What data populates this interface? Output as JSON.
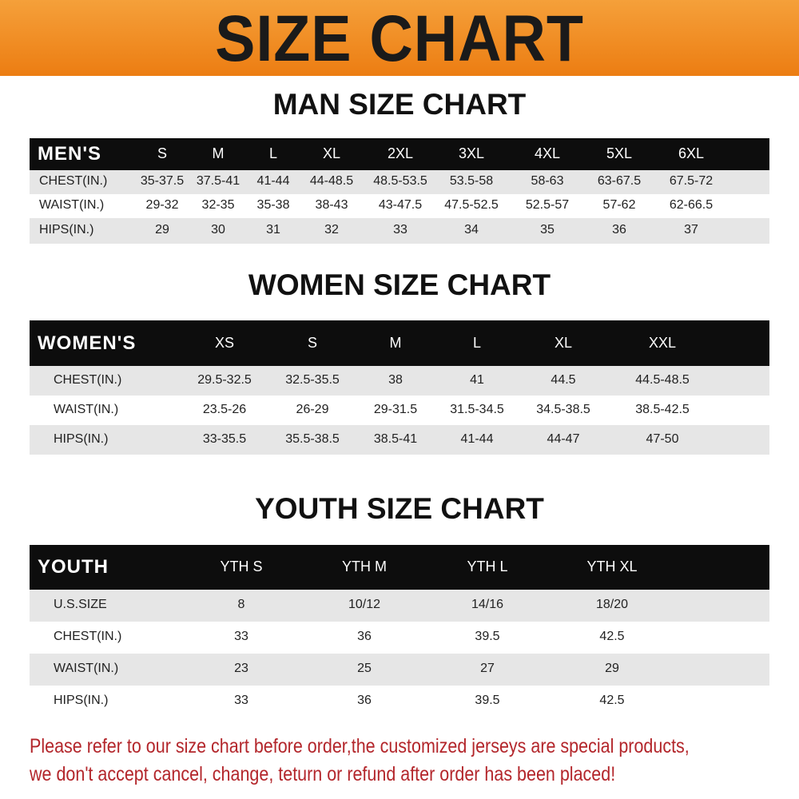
{
  "banner": {
    "title": "SIZE CHART",
    "color": "#ec7d12"
  },
  "men": {
    "title": "MAN SIZE CHART",
    "header": "MEN'S",
    "sizes": [
      "S",
      "M",
      "L",
      "XL",
      "2XL",
      "3XL",
      "4XL",
      "5XL",
      "6XL"
    ],
    "rows": [
      {
        "label": "CHEST(IN.)",
        "values": [
          "35-37.5",
          "37.5-41",
          "41-44",
          "44-48.5",
          "48.5-53.5",
          "53.5-58",
          "58-63",
          "63-67.5",
          "67.5-72"
        ]
      },
      {
        "label": "WAIST(IN.)",
        "values": [
          "29-32",
          "32-35",
          "35-38",
          "38-43",
          "43-47.5",
          "47.5-52.5",
          "52.5-57",
          "57-62",
          "62-66.5"
        ]
      },
      {
        "label": "HIPS(IN.)",
        "values": [
          "29",
          "30",
          "31",
          "32",
          "33",
          "34",
          "35",
          "36",
          "37"
        ]
      }
    ]
  },
  "women": {
    "title": "WOMEN SIZE CHART",
    "header": "WOMEN'S",
    "sizes": [
      "XS",
      "S",
      "M",
      "L",
      "XL",
      "XXL"
    ],
    "rows": [
      {
        "label": "CHEST(IN.)",
        "values": [
          "29.5-32.5",
          "32.5-35.5",
          "38",
          "41",
          "44.5",
          "44.5-48.5"
        ]
      },
      {
        "label": "WAIST(IN.)",
        "values": [
          "23.5-26",
          "26-29",
          "29-31.5",
          "31.5-34.5",
          "34.5-38.5",
          "38.5-42.5"
        ]
      },
      {
        "label": "HIPS(IN.)",
        "values": [
          "33-35.5",
          "35.5-38.5",
          "38.5-41",
          "41-44",
          "44-47",
          "47-50"
        ]
      }
    ]
  },
  "youth": {
    "title": "YOUTH SIZE CHART",
    "header": "YOUTH",
    "sizes": [
      "YTH S",
      "YTH M",
      "YTH L",
      "YTH XL"
    ],
    "rows": [
      {
        "label": "U.S.SIZE",
        "values": [
          "8",
          "10/12",
          "14/16",
          "18/20"
        ]
      },
      {
        "label": "CHEST(IN.)",
        "values": [
          "33",
          "36",
          "39.5",
          "42.5"
        ]
      },
      {
        "label": "WAIST(IN.)",
        "values": [
          "23",
          "25",
          "27",
          "29"
        ]
      },
      {
        "label": "HIPS(IN.)",
        "values": [
          "33",
          "36",
          "39.5",
          "42.5"
        ]
      }
    ]
  },
  "footer": {
    "line1": "Please refer to our size chart before order,the customized jerseys are special products,",
    "line2": "we don't accept cancel, change, teturn or refund after order has been placed!",
    "color": "#b3262b"
  }
}
